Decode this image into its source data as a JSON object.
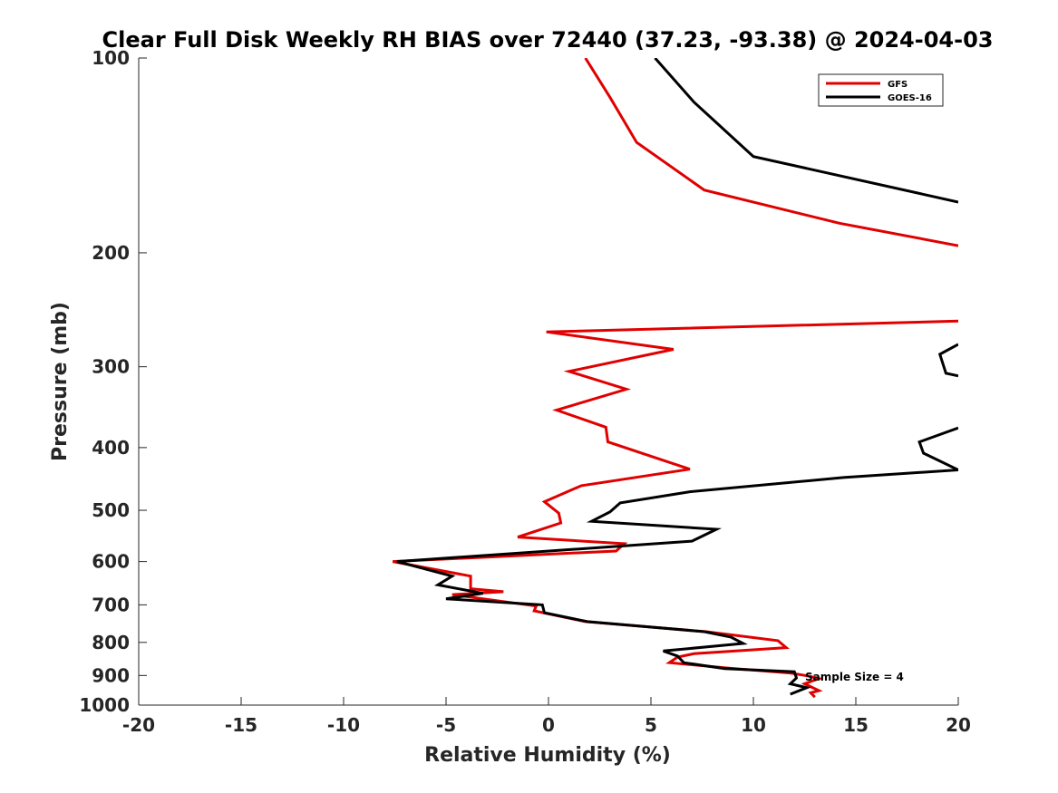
{
  "chart_data": {
    "type": "line",
    "title": "Clear Full Disk Weekly RH BIAS over 72440 (37.23, -93.38) @ 2024-04-03",
    "xlabel": "Relative Humidity (%)",
    "ylabel": "Pressure (mb)",
    "xlim": [
      -20,
      20
    ],
    "ylim": [
      1000,
      100
    ],
    "y_scale": "log",
    "y_reversed": true,
    "xticks": [
      -20,
      -15,
      -10,
      -5,
      0,
      5,
      10,
      15,
      20
    ],
    "yticks": [
      100,
      200,
      300,
      400,
      500,
      600,
      700,
      800,
      900,
      1000
    ],
    "grid": false,
    "legend_position": "top-right",
    "annotation": "Sample Size = 4",
    "series": [
      {
        "name": "GFS",
        "color": "#e00000",
        "points": [
          [
            1.8,
            100
          ],
          [
            3.0,
            115
          ],
          [
            4.3,
            135
          ],
          [
            7.6,
            160
          ],
          [
            14.2,
            180
          ],
          [
            20.0,
            195
          ],
          [
            null,
            null
          ],
          [
            20.0,
            255
          ],
          [
            -0.1,
            265
          ],
          [
            6.1,
            282
          ],
          [
            1.0,
            305
          ],
          [
            3.8,
            325
          ],
          [
            0.4,
            350
          ],
          [
            2.8,
            372
          ],
          [
            2.9,
            392
          ],
          [
            6.9,
            432
          ],
          [
            1.6,
            458
          ],
          [
            -0.2,
            485
          ],
          [
            0.5,
            505
          ],
          [
            0.6,
            523
          ],
          [
            -1.5,
            550
          ],
          [
            3.7,
            563
          ],
          [
            3.3,
            578
          ],
          [
            -7.6,
            600
          ],
          [
            -3.8,
            632
          ],
          [
            -3.8,
            661
          ],
          [
            -2.2,
            668
          ],
          [
            -4.7,
            675
          ],
          [
            -0.6,
            703
          ],
          [
            -0.7,
            715
          ],
          [
            1.8,
            743
          ],
          [
            7.7,
            770
          ],
          [
            11.2,
            795
          ],
          [
            11.6,
            815
          ],
          [
            7.1,
            833
          ],
          [
            6.3,
            843
          ],
          [
            5.9,
            860
          ],
          [
            8.8,
            877
          ],
          [
            11.8,
            892
          ],
          [
            12.7,
            902
          ],
          [
            13.2,
            910
          ],
          [
            12.5,
            927
          ],
          [
            13.2,
            950
          ],
          [
            12.8,
            957
          ],
          [
            13.0,
            972
          ]
        ]
      },
      {
        "name": "GOES-16",
        "color": "#000000",
        "points": [
          [
            5.2,
            100
          ],
          [
            7.1,
            117
          ],
          [
            10.0,
            142
          ],
          [
            20.0,
            167
          ],
          [
            null,
            null
          ],
          [
            20.0,
            277
          ],
          [
            19.1,
            287
          ],
          [
            19.4,
            307
          ],
          [
            20.0,
            310
          ],
          [
            null,
            null
          ],
          [
            20.0,
            373
          ],
          [
            18.1,
            392
          ],
          [
            18.3,
            408
          ],
          [
            20.0,
            433
          ],
          [
            14.4,
            445
          ],
          [
            6.9,
            468
          ],
          [
            3.5,
            487
          ],
          [
            3.0,
            503
          ],
          [
            2.1,
            520
          ],
          [
            8.2,
            535
          ],
          [
            7.0,
            558
          ],
          [
            -7.4,
            600
          ],
          [
            -4.7,
            632
          ],
          [
            -5.4,
            652
          ],
          [
            -3.2,
            672
          ],
          [
            -5.0,
            685
          ],
          [
            -0.3,
            700
          ],
          [
            -0.2,
            720
          ],
          [
            1.9,
            743
          ],
          [
            7.6,
            770
          ],
          [
            8.9,
            785
          ],
          [
            9.5,
            803
          ],
          [
            5.6,
            825
          ],
          [
            6.3,
            840
          ],
          [
            6.6,
            860
          ],
          [
            8.6,
            878
          ],
          [
            12.0,
            888
          ],
          [
            12.1,
            908
          ],
          [
            11.8,
            927
          ],
          [
            12.6,
            940
          ],
          [
            11.8,
            962
          ]
        ]
      }
    ]
  }
}
